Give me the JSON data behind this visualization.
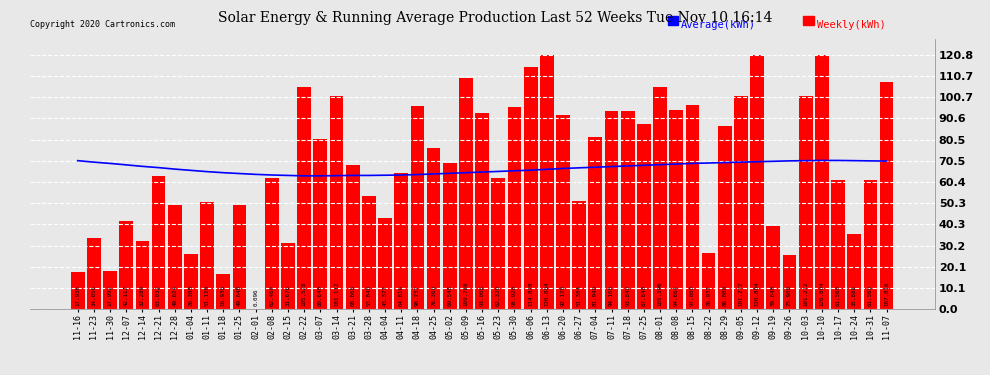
{
  "title": "Solar Energy & Running Average Production Last 52 Weeks Tue Nov 10 16:14",
  "copyright": "Copyright 2020 Cartronics.com",
  "legend_avg": "Average(kWh)",
  "legend_weekly": "Weekly(kWh)",
  "bar_color": "#ff0000",
  "avg_line_color": "#0000ff",
  "background_color": "#e8e8e8",
  "grid_color": "#ffffff",
  "ylim": [
    0,
    128
  ],
  "yticks": [
    0.0,
    10.1,
    20.1,
    30.2,
    40.3,
    50.3,
    60.4,
    70.5,
    80.5,
    90.6,
    100.7,
    110.7,
    120.8
  ],
  "categories": [
    "11-16",
    "11-23",
    "11-30",
    "12-07",
    "12-14",
    "12-21",
    "12-28",
    "01-04",
    "01-11",
    "01-18",
    "01-25",
    "02-01",
    "02-08",
    "02-15",
    "02-22",
    "03-07",
    "03-14",
    "03-21",
    "03-28",
    "04-04",
    "04-11",
    "04-18",
    "04-25",
    "05-02",
    "05-09",
    "05-16",
    "05-23",
    "05-30",
    "06-06",
    "06-13",
    "06-20",
    "06-27",
    "07-04",
    "07-11",
    "07-18",
    "07-25",
    "08-01",
    "08-08",
    "08-15",
    "08-22",
    "08-29",
    "09-05",
    "09-12",
    "09-19",
    "09-26",
    "10-03",
    "10-10",
    "10-17",
    "10-24",
    "10-31",
    "11-07"
  ],
  "weekly_values": [
    17.936,
    34.056,
    17.992,
    42.112,
    32.28,
    63.032,
    49.624,
    26.208,
    51.128,
    16.936,
    49.648,
    0.096,
    62.46,
    31.676,
    105.528,
    80.64,
    101.112,
    68.668,
    53.84,
    43.372,
    64.816,
    96.232,
    76.36,
    69.548,
    109.788,
    93.008,
    62.32,
    95.92,
    114.828,
    120.804,
    92.128,
    51.304,
    81.94,
    94.168,
    93.84,
    87.84,
    105.396,
    94.664,
    97.0,
    26.932,
    86.808,
    101.272,
    120.804,
    39.648,
    25.908,
    101.272,
    120.804,
    61.56,
    35.888,
    61.56,
    107.816
  ],
  "avg_values": [
    70.5,
    69.8,
    69.2,
    68.5,
    67.8,
    67.2,
    66.5,
    65.9,
    65.3,
    64.8,
    64.4,
    64.0,
    63.7,
    63.5,
    63.3,
    63.3,
    63.4,
    63.5,
    63.5,
    63.6,
    63.7,
    63.9,
    64.2,
    64.5,
    64.8,
    65.1,
    65.4,
    65.7,
    66.0,
    66.4,
    66.8,
    67.1,
    67.4,
    67.7,
    68.0,
    68.3,
    68.6,
    68.9,
    69.2,
    69.4,
    69.6,
    69.8,
    70.0,
    70.2,
    70.4,
    70.5,
    70.6,
    70.6,
    70.5,
    70.4,
    70.3
  ],
  "value_labels": [
    "17.936",
    "34.056",
    "17.992",
    "42.112",
    "32.280",
    "63.032",
    "49.624",
    "26.208",
    "51.128",
    "16.936",
    "49.648",
    "0.096",
    "62.460",
    "31.676",
    "105.528",
    "80.640",
    "101.112",
    "68.668",
    "53.840",
    "43.372",
    "64.816",
    "96.232",
    "76.360",
    "69.548",
    "109.788",
    "93.008",
    "62.320",
    "95.920",
    "114.828",
    "120.804",
    "92.128",
    "51.304",
    "81.940",
    "94.168",
    "93.840",
    "87.840",
    "105.396",
    "94.664",
    "97.000",
    "26.932",
    "86.808",
    "101.272",
    "120.804",
    "39.648",
    "25.908",
    "101.272",
    "120.804",
    "61.560",
    "35.888",
    "61.560",
    "107.816"
  ]
}
